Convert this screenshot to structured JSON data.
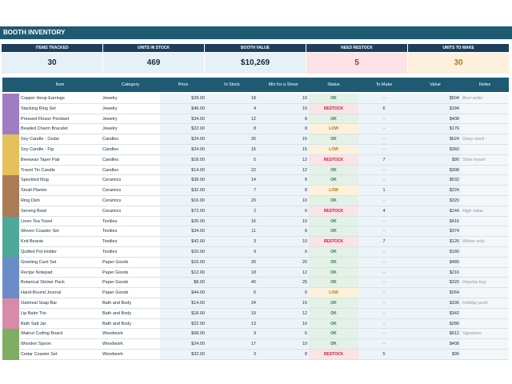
{
  "title": "BOOTH INVENTORY",
  "kpis": [
    {
      "label": "ITEMS TRACKED",
      "value": "30"
    },
    {
      "label": "UNITS IN STOCK",
      "value": "469"
    },
    {
      "label": "BOOTH VALUE",
      "value": "$10,269"
    },
    {
      "label": "NEED RESTOCK",
      "value": "5"
    },
    {
      "label": "UNITS TO MAKE",
      "value": "30"
    }
  ],
  "table": {
    "columns": [
      "Item",
      "Category",
      "Price",
      "In Stock",
      "Min for a Show",
      "Status",
      "To Make",
      "Value",
      "Notes"
    ],
    "rows": [
      [
        "Copper Hoop Earrings",
        "Jewelry",
        "$28.00",
        "18",
        "10",
        "OK",
        "-",
        "$504",
        "Best seller"
      ],
      [
        "Stacking Ring Set",
        "Jewelry",
        "$46.00",
        "4",
        "10",
        "RESTOCK",
        "6",
        "$184",
        ""
      ],
      [
        "Pressed Flower Pendant",
        "Jewelry",
        "$34.00",
        "12",
        "8",
        "OK",
        "-",
        "$408",
        ""
      ],
      [
        "Beaded Charm Bracelet",
        "Jewelry",
        "$22.00",
        "8",
        "8",
        "LOW",
        "-",
        "$176",
        ""
      ],
      [
        "Soy Candle - Cedar",
        "Candles",
        "$24.00",
        "26",
        "15",
        "OK",
        "-",
        "$624",
        "Deep stock"
      ],
      [
        "Soy Candle - Fig",
        "Candles",
        "$24.00",
        "15",
        "15",
        "LOW",
        "-",
        "$360",
        ""
      ],
      [
        "Beeswax Taper Pair",
        "Candles",
        "$18.00",
        "5",
        "12",
        "RESTOCK",
        "7",
        "$90",
        "Slow mover"
      ],
      [
        "Travel Tin Candle",
        "Candles",
        "$14.00",
        "22",
        "12",
        "OK",
        "-",
        "$308",
        ""
      ],
      [
        "Speckled Mug",
        "Ceramics",
        "$38.00",
        "14",
        "8",
        "OK",
        "-",
        "$532",
        ""
      ],
      [
        "Small Planter",
        "Ceramics",
        "$32.00",
        "7",
        "8",
        "LOW",
        "1",
        "$224",
        ""
      ],
      [
        "Ring Dish",
        "Ceramics",
        "$16.00",
        "20",
        "10",
        "OK",
        "-",
        "$320",
        ""
      ],
      [
        "Serving Bowl",
        "Ceramics",
        "$72.00",
        "2",
        "6",
        "RESTOCK",
        "4",
        "$144",
        "High value"
      ],
      [
        "Linen Tea Towel",
        "Textiles",
        "$26.00",
        "16",
        "10",
        "OK",
        "-",
        "$416",
        ""
      ],
      [
        "Woven Coaster Set",
        "Textiles",
        "$34.00",
        "11",
        "8",
        "OK",
        "-",
        "$374",
        ""
      ],
      [
        "Knit Beanie",
        "Textiles",
        "$42.00",
        "3",
        "10",
        "RESTOCK",
        "7",
        "$126",
        "Winter only"
      ],
      [
        "Quilted Pot Holder",
        "Textiles",
        "$20.00",
        "9",
        "6",
        "OK",
        "-",
        "$180",
        ""
      ],
      [
        "Greeting Card Set",
        "Paper Goods",
        "$16.00",
        "30",
        "20",
        "OK",
        "-",
        "$480",
        ""
      ],
      [
        "Recipe Notepad",
        "Paper Goods",
        "$12.00",
        "18",
        "12",
        "OK",
        "-",
        "$216",
        ""
      ],
      [
        "Botanical Sticker Pack",
        "Paper Goods",
        "$8.00",
        "40",
        "25",
        "OK",
        "-",
        "$320",
        "Impulse buy"
      ],
      [
        "Hand-Bound Journal",
        "Paper Goods",
        "$44.00",
        "6",
        "6",
        "LOW",
        "-",
        "$264",
        ""
      ],
      [
        "Oatmeal Soap Bar",
        "Bath and Body",
        "$14.00",
        "24",
        "15",
        "OK",
        "-",
        "$336",
        "Holiday push"
      ],
      [
        "Lip Balm Trio",
        "Bath and Body",
        "$18.00",
        "19",
        "12",
        "OK",
        "-",
        "$342",
        ""
      ],
      [
        "Bath Salt Jar",
        "Bath and Body",
        "$22.00",
        "13",
        "10",
        "OK",
        "-",
        "$286",
        ""
      ],
      [
        "Walnut Cutting Board",
        "Woodwork",
        "$68.00",
        "9",
        "6",
        "OK",
        "-",
        "$612",
        "Signature"
      ],
      [
        "Wooden Spoon",
        "Woodwork",
        "$24.00",
        "17",
        "10",
        "OK",
        "-",
        "$408",
        ""
      ],
      [
        "Cedar Coaster Set",
        "Woodwork",
        "$32.00",
        "3",
        "8",
        "RESTOCK",
        "5",
        "$96",
        ""
      ]
    ]
  }
}
